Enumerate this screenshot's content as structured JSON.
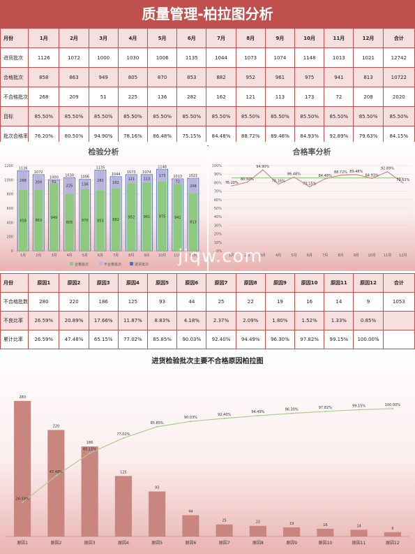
{
  "title": "质量管理-柏拉图分析",
  "table1": {
    "header": [
      "月份",
      "1月",
      "2月",
      "3月",
      "4月",
      "5月",
      "6月",
      "7月",
      "8月",
      "9月",
      "10月",
      "11月",
      "12月",
      "合计"
    ],
    "rows": [
      [
        "进货批次",
        "1126",
        "1072",
        "1000",
        "1030",
        "1006",
        "1135",
        "1044",
        "1073",
        "1074",
        "1148",
        "1013",
        "1021",
        "12742"
      ],
      [
        "合格批次",
        "858",
        "863",
        "949",
        "805",
        "870",
        "853",
        "882",
        "952",
        "961",
        "975",
        "941",
        "813",
        "10722"
      ],
      [
        "不合格批次",
        "268",
        "209",
        "51",
        "225",
        "136",
        "282",
        "162",
        "121",
        "113",
        "173",
        "72",
        "208",
        "2020"
      ],
      [
        "目标",
        "85.50%",
        "85.50%",
        "85.50%",
        "85.50%",
        "85.50%",
        "85.50%",
        "85.50%",
        "85.50%",
        "85.50%",
        "85.50%",
        "85.50%",
        "85.50%",
        "85.50%"
      ],
      [
        "批次合格率",
        "76.20%",
        "80.50%",
        "94.90%",
        "78.16%",
        "86.48%",
        "75.15%",
        "84.48%",
        "88.72%",
        "89.48%",
        "84.93%",
        "92.89%",
        "79.63%",
        "84.15%"
      ]
    ]
  },
  "table2": {
    "header": [
      "月份",
      "原因1",
      "原因2",
      "原因3",
      "原因4",
      "原因5",
      "原因6",
      "原因7",
      "原因8",
      "原因9",
      "原因10",
      "原因11",
      "原因12",
      "合计"
    ],
    "rows": [
      [
        "不合格批数",
        "280",
        "220",
        "186",
        "125",
        "93",
        "44",
        "25",
        "22",
        "19",
        "16",
        "14",
        "9",
        "1053"
      ],
      [
        "不良比率",
        "26.59%",
        "20.89%",
        "17.66%",
        "11.87%",
        "8.83%",
        "4.18%",
        "2.37%",
        "2.09%",
        "1.80%",
        "1.52%",
        "1.33%",
        "0.85%",
        ""
      ],
      [
        "累计比率",
        "26.59%",
        "47.48%",
        "65.15%",
        "77.02%",
        "85.85%",
        "90.03%",
        "92.40%",
        "94.49%",
        "96.30%",
        "97.82%",
        "99.15%",
        "100.00%",
        ""
      ]
    ]
  },
  "watermark": "jiqw.com",
  "chart_data": [
    {
      "type": "bar",
      "title": "检验分析",
      "categories": [
        "1月",
        "2月",
        "3月",
        "4月",
        "5月",
        "6月",
        "7月",
        "8月",
        "9月",
        "10月",
        "11月",
        "12月"
      ],
      "series": [
        {
          "name": "合格批次",
          "values": [
            858,
            863,
            949,
            805,
            870,
            853,
            882,
            952,
            961,
            975,
            941,
            813
          ],
          "color": "#8fc97f"
        },
        {
          "name": "不合格批次",
          "values": [
            268,
            209,
            51,
            225,
            136,
            282,
            162,
            121,
            113,
            173,
            72,
            208
          ],
          "color": "#b8b4dc"
        },
        {
          "name": "进货批次",
          "values": [
            1126,
            1072,
            1000,
            1030,
            1006,
            1135,
            1044,
            1073,
            1074,
            1148,
            1013,
            1021
          ],
          "color": "#4f6fc0"
        }
      ],
      "legend_labels": [
        "合格批次",
        "不合格批次",
        "进货批次"
      ],
      "ylim": [
        0,
        1200
      ],
      "yticks": [
        0,
        200,
        400,
        600,
        800,
        1000,
        1200
      ],
      "legend": "bottom"
    },
    {
      "type": "line",
      "title": "合格率分析",
      "categories": [
        "1月",
        "2月",
        "3月",
        "4月",
        "5月",
        "6月",
        "7月",
        "8月",
        "9月",
        "10月",
        "11月",
        "12月"
      ],
      "series": [
        {
          "name": "批次合格率",
          "values": [
            76.2,
            80.5,
            94.9,
            78.16,
            86.48,
            75.15,
            84.48,
            88.72,
            89.48,
            84.93,
            92.89,
            79.63
          ],
          "labels": [
            "76.20%",
            "80.50%",
            "94.90%",
            "78.16%",
            "86.48%",
            "75.15%",
            "84.48%",
            "88.72%",
            "89.48%",
            "84.93%",
            "92.89%",
            "79.63%"
          ],
          "color": "#d58a86"
        },
        {
          "name": "目标",
          "values": [
            85.5,
            85.5,
            85.5,
            85.5,
            85.5,
            85.5,
            85.5,
            85.5,
            85.5,
            85.5,
            85.5,
            85.5
          ],
          "color": "#8fc97f"
        }
      ],
      "ylim": [
        0,
        100
      ],
      "yticks": [
        "0%",
        "10%",
        "20%",
        "30%",
        "40%",
        "50%",
        "60%",
        "70%",
        "80%",
        "90%",
        "100%"
      ]
    },
    {
      "type": "bar",
      "title": "进货检验批次主要不合格原因柏拉图",
      "categories": [
        "原因1",
        "原因2",
        "原因3",
        "原因4",
        "原因5",
        "原因6",
        "原因7",
        "原因8",
        "原因9",
        "原因10",
        "原因11",
        "原因12"
      ],
      "series": [
        {
          "name": "不合格批数",
          "values": [
            280,
            220,
            186,
            125,
            93,
            44,
            25,
            22,
            19,
            16,
            14,
            9
          ],
          "color": "#c8867f"
        },
        {
          "name": "累计比率",
          "type": "line",
          "values": [
            26.59,
            47.48,
            65.15,
            77.02,
            85.85,
            90.03,
            92.4,
            94.49,
            96.3,
            97.82,
            99.15,
            100.0
          ],
          "labels": [
            "26.59%",
            "47.48%",
            "65.15%",
            "77.02%",
            "85.85%",
            "90.03%",
            "92.40%",
            "94.49%",
            "96.30%",
            "97.82%",
            "99.15%",
            "100.00%"
          ],
          "color": "#a9cf8f"
        }
      ],
      "ylim": [
        0,
        300
      ]
    }
  ]
}
